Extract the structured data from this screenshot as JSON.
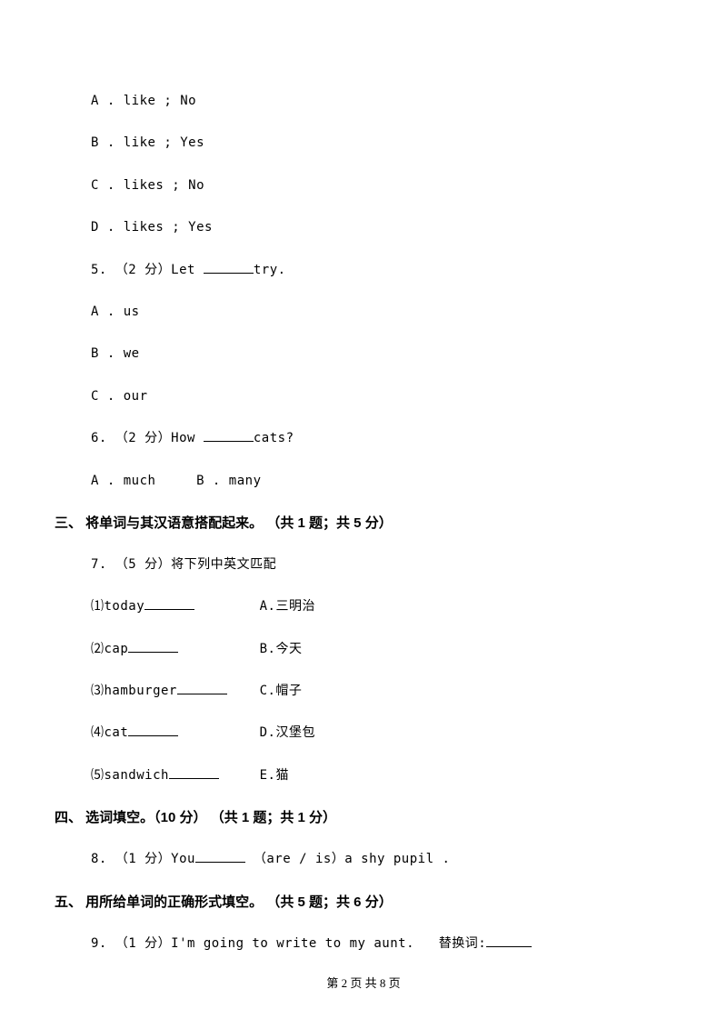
{
  "q4_opts": {
    "a": "A . like ; No",
    "b": "B . like ; Yes",
    "c": "C . likes ; No",
    "d": "D . likes ; Yes"
  },
  "q5": {
    "stem_pre": "5. （2 分）Let ",
    "stem_post": "try.",
    "a": "A . us",
    "b": "B . we",
    "c": "C . our"
  },
  "q6": {
    "stem_pre": "6. （2 分）How ",
    "stem_post": "cats?",
    "opts": "A . much     B . many"
  },
  "s3": {
    "heading": "三、 将单词与其汉语意搭配起来。 （共 1 题；共 5 分）",
    "q7_stem": "7. （5 分）将下列中英文匹配",
    "items": [
      {
        "en_pre": "⑴today",
        "cn": "A.三明治"
      },
      {
        "en_pre": "⑵cap",
        "cn": "B.今天"
      },
      {
        "en_pre": "⑶hamburger",
        "cn": "C.帽子"
      },
      {
        "en_pre": "⑷cat",
        "cn": "D.汉堡包"
      },
      {
        "en_pre": "⑸sandwich",
        "cn": "E.猫"
      }
    ]
  },
  "s4": {
    "heading": "四、 选词填空。（10 分） （共 1 题；共 1 分）",
    "q8_pre": "8. （1 分）You",
    "q8_post": " （are / is）a shy pupil ."
  },
  "s5": {
    "heading": "五、 用所给单词的正确形式填空。 （共 5 题；共 6 分）",
    "q9_pre": "9. （1 分）I'm going to write to my aunt.   替换词:"
  },
  "footer": "第 2 页 共 8 页",
  "blank_widths": {
    "short": "55px",
    "mid": "60px",
    "match": "55px",
    "q8": "55px",
    "q9": "50px"
  }
}
